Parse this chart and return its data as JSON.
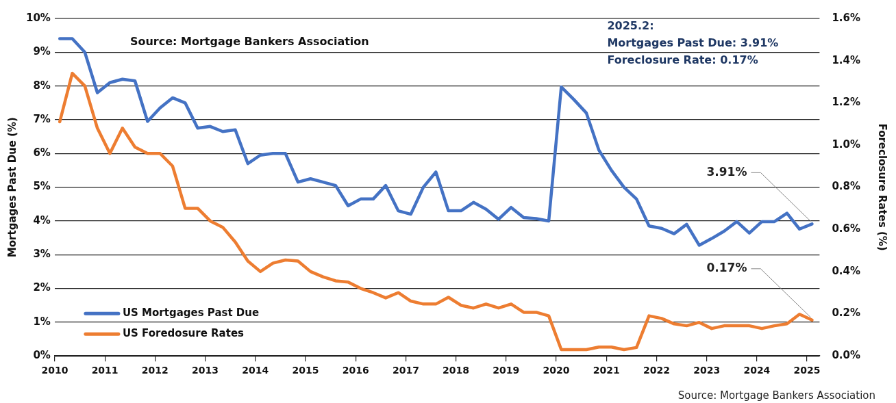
{
  "chart_data": {
    "type": "line",
    "ylabel": "Mortgages Past Due (%)",
    "y2label": "Foreclosure Rates (%)",
    "annotations": [
      "Source: Mortgage Bankers Association",
      "2025.2:\nMortgages Past Due: 3.91%\nForeclosure Rate: 0.17%",
      "Source: Mortgage Bankers Association"
    ],
    "x": [
      2010.1,
      2010.35,
      2010.6,
      2010.85,
      2011.1,
      2011.35,
      2011.6,
      2011.85,
      2012.1,
      2012.35,
      2012.6,
      2012.85,
      2013.1,
      2013.35,
      2013.6,
      2013.85,
      2014.1,
      2014.35,
      2014.6,
      2014.85,
      2015.1,
      2015.35,
      2015.6,
      2015.85,
      2016.1,
      2016.35,
      2016.6,
      2016.85,
      2017.1,
      2017.35,
      2017.6,
      2017.85,
      2018.1,
      2018.35,
      2018.6,
      2018.85,
      2019.1,
      2019.35,
      2019.6,
      2019.85,
      2020.1,
      2020.35,
      2020.6,
      2020.85,
      2021.1,
      2021.35,
      2021.6,
      2021.85,
      2022.1,
      2022.35,
      2022.6,
      2022.85,
      2023.1,
      2023.35,
      2023.6,
      2023.85,
      2024.1,
      2024.35,
      2024.6,
      2024.85,
      2025.1
    ],
    "series": [
      {
        "name": "US Mortgages Past Due",
        "color": "#4472c4",
        "values": [
          9.4,
          9.4,
          9.0,
          7.8,
          8.1,
          8.2,
          8.15,
          6.95,
          7.35,
          7.65,
          7.5,
          6.75,
          6.8,
          6.65,
          6.7,
          5.7,
          5.95,
          6.0,
          6.0,
          5.15,
          5.25,
          5.15,
          5.05,
          4.45,
          4.65,
          4.65,
          5.05,
          4.3,
          4.2,
          5.0,
          5.45,
          4.3,
          4.3,
          4.55,
          4.35,
          4.05,
          4.4,
          4.1,
          4.07,
          4.0,
          7.97,
          7.6,
          7.2,
          6.1,
          5.5,
          5.0,
          4.65,
          3.85,
          3.78,
          3.62,
          3.9,
          3.28,
          3.48,
          3.7,
          3.98,
          3.64,
          3.98,
          3.98,
          4.23,
          3.76,
          3.91
        ],
        "value_labels": [
          null,
          null,
          null,
          null,
          null,
          null,
          null,
          null,
          null,
          null,
          null,
          null,
          null,
          null,
          null,
          null,
          null,
          null,
          null,
          null,
          null,
          null,
          null,
          null,
          null,
          null,
          null,
          null,
          null,
          null,
          null,
          null,
          null,
          null,
          null,
          null,
          null,
          null,
          null,
          null,
          null,
          null,
          null,
          null,
          null,
          null,
          null,
          null,
          null,
          null,
          null,
          null,
          null,
          null,
          null,
          null,
          null,
          null,
          null,
          null,
          "3.91%"
        ]
      },
      {
        "name": "US Foredosure Rates",
        "color": "#ed7d31",
        "axis": "y2",
        "values": [
          1.11,
          1.34,
          1.28,
          1.08,
          0.96,
          1.08,
          0.99,
          0.96,
          0.96,
          0.9,
          0.7,
          0.7,
          0.64,
          0.61,
          0.54,
          0.45,
          0.4,
          0.44,
          0.455,
          0.45,
          0.4,
          0.375,
          0.356,
          0.35,
          0.32,
          0.3,
          0.275,
          0.3,
          0.26,
          0.246,
          0.246,
          0.278,
          0.24,
          0.227,
          0.246,
          0.227,
          0.246,
          0.207,
          0.207,
          0.19,
          0.03,
          0.03,
          0.03,
          0.042,
          0.042,
          0.03,
          0.04,
          0.19,
          0.178,
          0.152,
          0.143,
          0.159,
          0.13,
          0.143,
          0.143,
          0.143,
          0.13,
          0.143,
          0.152,
          0.198,
          0.17
        ],
        "value_labels": [
          null,
          null,
          null,
          null,
          null,
          null,
          null,
          null,
          null,
          null,
          null,
          null,
          null,
          null,
          null,
          null,
          null,
          null,
          null,
          null,
          null,
          null,
          null,
          null,
          null,
          null,
          null,
          null,
          null,
          null,
          null,
          null,
          null,
          null,
          null,
          null,
          null,
          null,
          null,
          null,
          null,
          null,
          null,
          null,
          null,
          null,
          null,
          null,
          null,
          null,
          null,
          null,
          null,
          null,
          null,
          null,
          null,
          null,
          null,
          null,
          "0.17%"
        ]
      }
    ],
    "xlim": [
      2010,
      2025.25
    ],
    "xticks": [
      2010,
      2011,
      2012,
      2013,
      2014,
      2015,
      2016,
      2017,
      2018,
      2019,
      2020,
      2021,
      2022,
      2023,
      2024,
      2025
    ],
    "ylim": [
      0,
      10
    ],
    "yticks": [
      {
        "value": 0,
        "label": "0%"
      },
      {
        "value": 1,
        "label": "1%"
      },
      {
        "value": 2,
        "label": "2%"
      },
      {
        "value": 3,
        "label": "3%"
      },
      {
        "value": 4,
        "label": "4%"
      },
      {
        "value": 5,
        "label": "5%"
      },
      {
        "value": 6,
        "label": "6%"
      },
      {
        "value": 7,
        "label": "7%"
      },
      {
        "value": 8,
        "label": "8%"
      },
      {
        "value": 9,
        "label": "9%"
      },
      {
        "value": 10,
        "label": "10%"
      }
    ],
    "y2lim": [
      0,
      1.6
    ],
    "y2ticks": [
      {
        "value": 0,
        "label": "0.0%"
      },
      {
        "value": 0.2,
        "label": "0.2%"
      },
      {
        "value": 0.4,
        "label": "0.4%"
      },
      {
        "value": 0.6,
        "label": "0.6%"
      },
      {
        "value": 0.8,
        "label": "0.8%"
      },
      {
        "value": 1.0,
        "label": "1.0%"
      },
      {
        "value": 1.2,
        "label": "1.2%"
      },
      {
        "value": 1.4,
        "label": "1.4%"
      },
      {
        "value": 1.6,
        "label": "1.6%"
      }
    ],
    "grid": "y",
    "legend": "bottom left",
    "marker": "none",
    "line_style": "solid"
  }
}
